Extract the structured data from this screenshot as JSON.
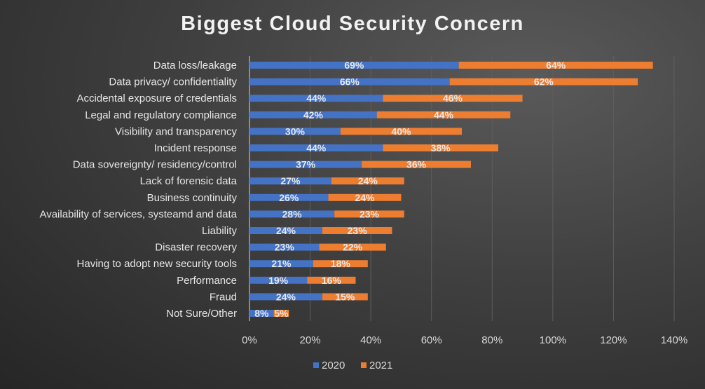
{
  "chart_data": {
    "type": "bar",
    "orientation": "horizontal",
    "stacked": true,
    "title": "Biggest Cloud Security Concern",
    "categories": [
      "Data loss/leakage",
      "Data privacy/ confidentiality",
      "Accidental exposure of credentials",
      "Legal and regulatory compliance",
      "Visibility and transparency",
      "Incident response",
      "Data sovereignty/ residency/control",
      "Lack of forensic data",
      "Business continuity",
      "Availability of services, systeamd and data",
      "Liability",
      "Disaster recovery",
      "Having to adopt new security tools",
      "Performance",
      "Fraud",
      "Not Sure/Other"
    ],
    "series": [
      {
        "name": "2020",
        "color": "#4472c4",
        "values": [
          69,
          66,
          44,
          42,
          30,
          44,
          37,
          27,
          26,
          28,
          24,
          23,
          21,
          19,
          24,
          8
        ]
      },
      {
        "name": "2021",
        "color": "#ed7d31",
        "values": [
          64,
          62,
          46,
          44,
          40,
          38,
          36,
          24,
          24,
          23,
          23,
          22,
          18,
          16,
          15,
          5
        ]
      }
    ],
    "xlim": [
      0,
      140
    ],
    "xticks": [
      "0%",
      "20%",
      "40%",
      "60%",
      "80%",
      "100%",
      "120%",
      "140%"
    ],
    "grid": true,
    "legend": "bottom"
  }
}
